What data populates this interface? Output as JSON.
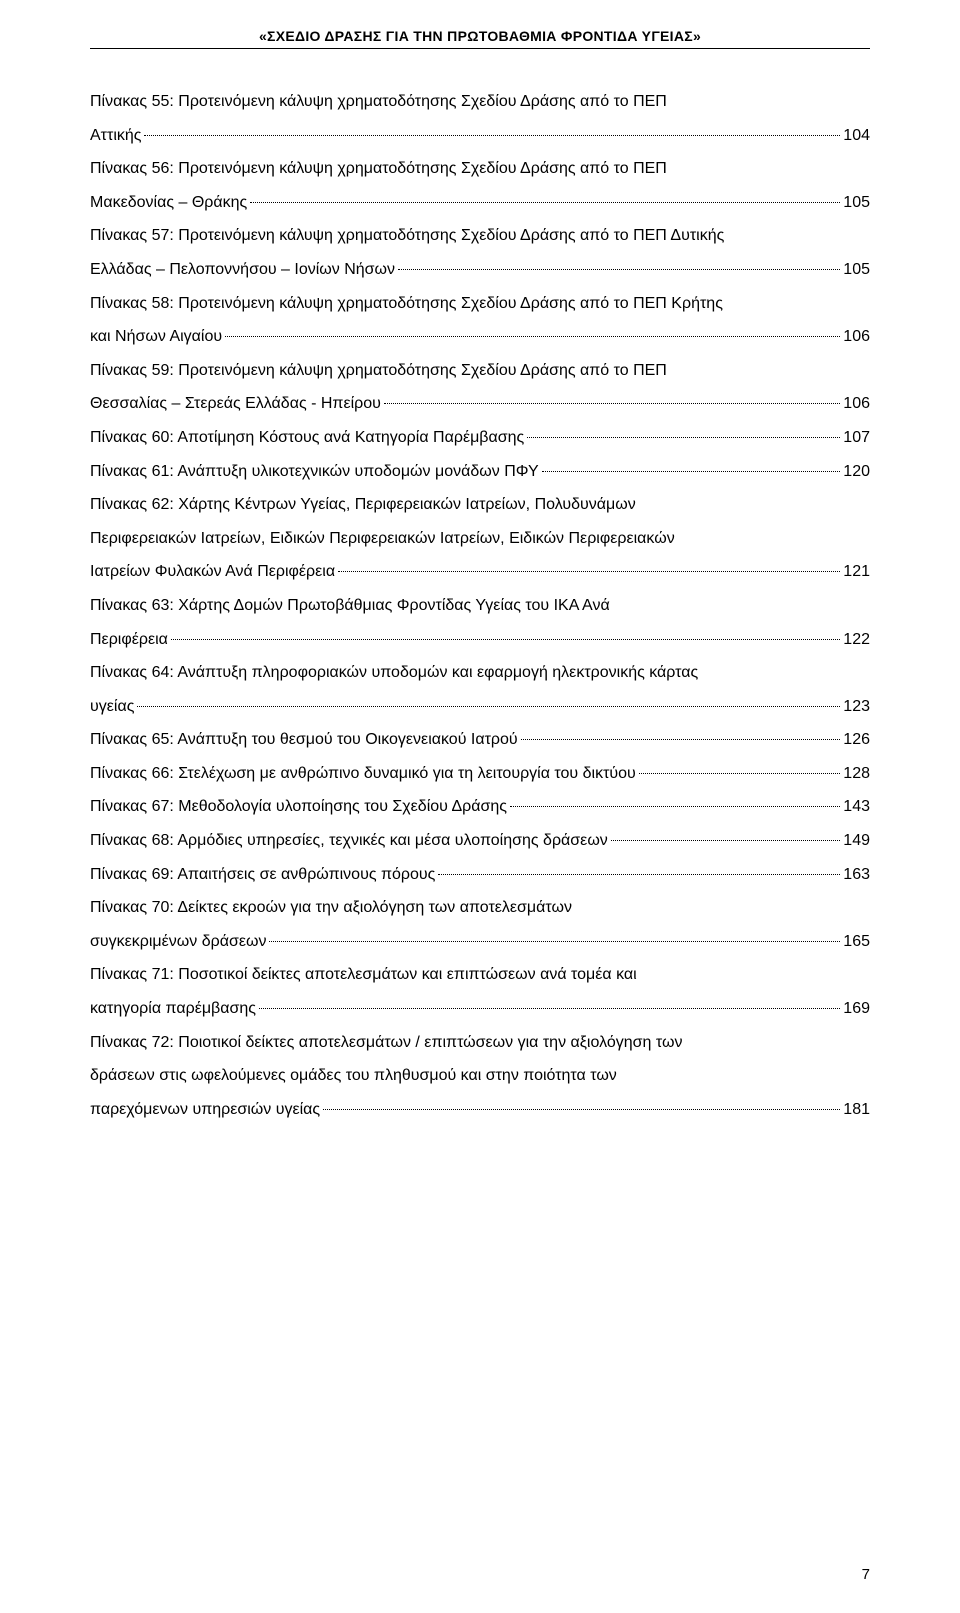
{
  "header": "«ΣΧΕΔΙΟ ΔΡΑΣΗΣ ΓΙΑ ΤΗΝ ΠΡΩΤΟΒΑΘΜΙΑ ΦΡΟΝΤΙΔΑ ΥΓΕΙΑΣ»",
  "entries": [
    {
      "lines": [
        "Πίνακας 55: Προτεινόμενη κάλυψη χρηματοδότησης Σχεδίου Δράσης από το ΠΕΠ",
        "Αττικής"
      ],
      "page": "104"
    },
    {
      "lines": [
        "Πίνακας 56: Προτεινόμενη κάλυψη χρηματοδότησης Σχεδίου Δράσης από το ΠΕΠ",
        "Μακεδονίας – Θράκης"
      ],
      "page": "105"
    },
    {
      "lines": [
        "Πίνακας 57: Προτεινόμενη κάλυψη χρηματοδότησης Σχεδίου Δράσης από το ΠΕΠ Δυτικής",
        "Ελλάδας – Πελοποννήσου – Ιονίων Νήσων"
      ],
      "page": "105"
    },
    {
      "lines": [
        "Πίνακας 58: Προτεινόμενη κάλυψη χρηματοδότησης Σχεδίου Δράσης από το ΠΕΠ Κρήτης",
        "και Νήσων Αιγαίου"
      ],
      "page": "106"
    },
    {
      "lines": [
        "Πίνακας 59: Προτεινόμενη κάλυψη χρηματοδότησης Σχεδίου Δράσης από το ΠΕΠ",
        "Θεσσαλίας – Στερεάς Ελλάδας - Ηπείρου"
      ],
      "page": "106"
    },
    {
      "lines": [
        "Πίνακας 60:  Αποτίμηση Κόστους ανά Κατηγορία Παρέμβασης"
      ],
      "page": "107"
    },
    {
      "lines": [
        "Πίνακας 61:  Ανάπτυξη υλικοτεχνικών υποδομών μονάδων ΠΦΥ"
      ],
      "page": "120"
    },
    {
      "lines": [
        "Πίνακας 62: Χάρτης Κέντρων Υγείας, Περιφερειακών Ιατρείων, Πολυδυνάμων",
        "Περιφερειακών Ιατρείων, Ειδικών Περιφερειακών Ιατρείων, Ειδικών Περιφερειακών",
        "Ιατρείων Φυλακών Ανά Περιφέρεια"
      ],
      "page": "121"
    },
    {
      "lines": [
        "Πίνακας 63: Χάρτης Δομών Πρωτοβάθμιας Φροντίδας Υγείας του ΙΚΑ Ανά",
        "Περιφέρεια"
      ],
      "page": "122"
    },
    {
      "lines": [
        "Πίνακας 64:  Ανάπτυξη πληροφοριακών υποδομών και εφαρμογή ηλεκτρονικής κάρτας",
        "υγείας"
      ],
      "page": "123"
    },
    {
      "lines": [
        "Πίνακας 65: Ανάπτυξη του θεσμού του Οικογενειακού Ιατρού"
      ],
      "page": "126"
    },
    {
      "lines": [
        "Πίνακας 66: Στελέχωση με ανθρώπινο δυναμικό για τη λειτουργία του δικτύου"
      ],
      "page": "128"
    },
    {
      "lines": [
        "Πίνακας 67: Μεθοδολογία υλοποίησης του Σχεδίου Δράσης"
      ],
      "page": "143"
    },
    {
      "lines": [
        "Πίνακας 68: Αρμόδιες υπηρεσίες, τεχνικές και μέσα υλοποίησης δράσεων"
      ],
      "page": "149"
    },
    {
      "lines": [
        "Πίνακας 69: Απαιτήσεις σε ανθρώπινους πόρους"
      ],
      "page": "163"
    },
    {
      "lines": [
        "Πίνακας 70: Δείκτες εκροών για την αξιολόγηση των αποτελεσμάτων",
        "συγκεκριμένων δράσεων"
      ],
      "page": "165"
    },
    {
      "lines": [
        "Πίνακας 71: Ποσοτικοί δείκτες αποτελεσμάτων και επιπτώσεων ανά τομέα και",
        "κατηγορία παρέμβασης"
      ],
      "page": "169"
    },
    {
      "lines": [
        "Πίνακας  72: Ποιοτικοί δείκτες αποτελεσμάτων / επιπτώσεων για την αξιολόγηση των",
        "δράσεων στις ωφελούμενες ομάδες του πληθυσμού και στην ποιότητα των",
        "παρεχόμενων υπηρεσιών υγείας"
      ],
      "page": "181"
    }
  ],
  "footer_page": "7"
}
